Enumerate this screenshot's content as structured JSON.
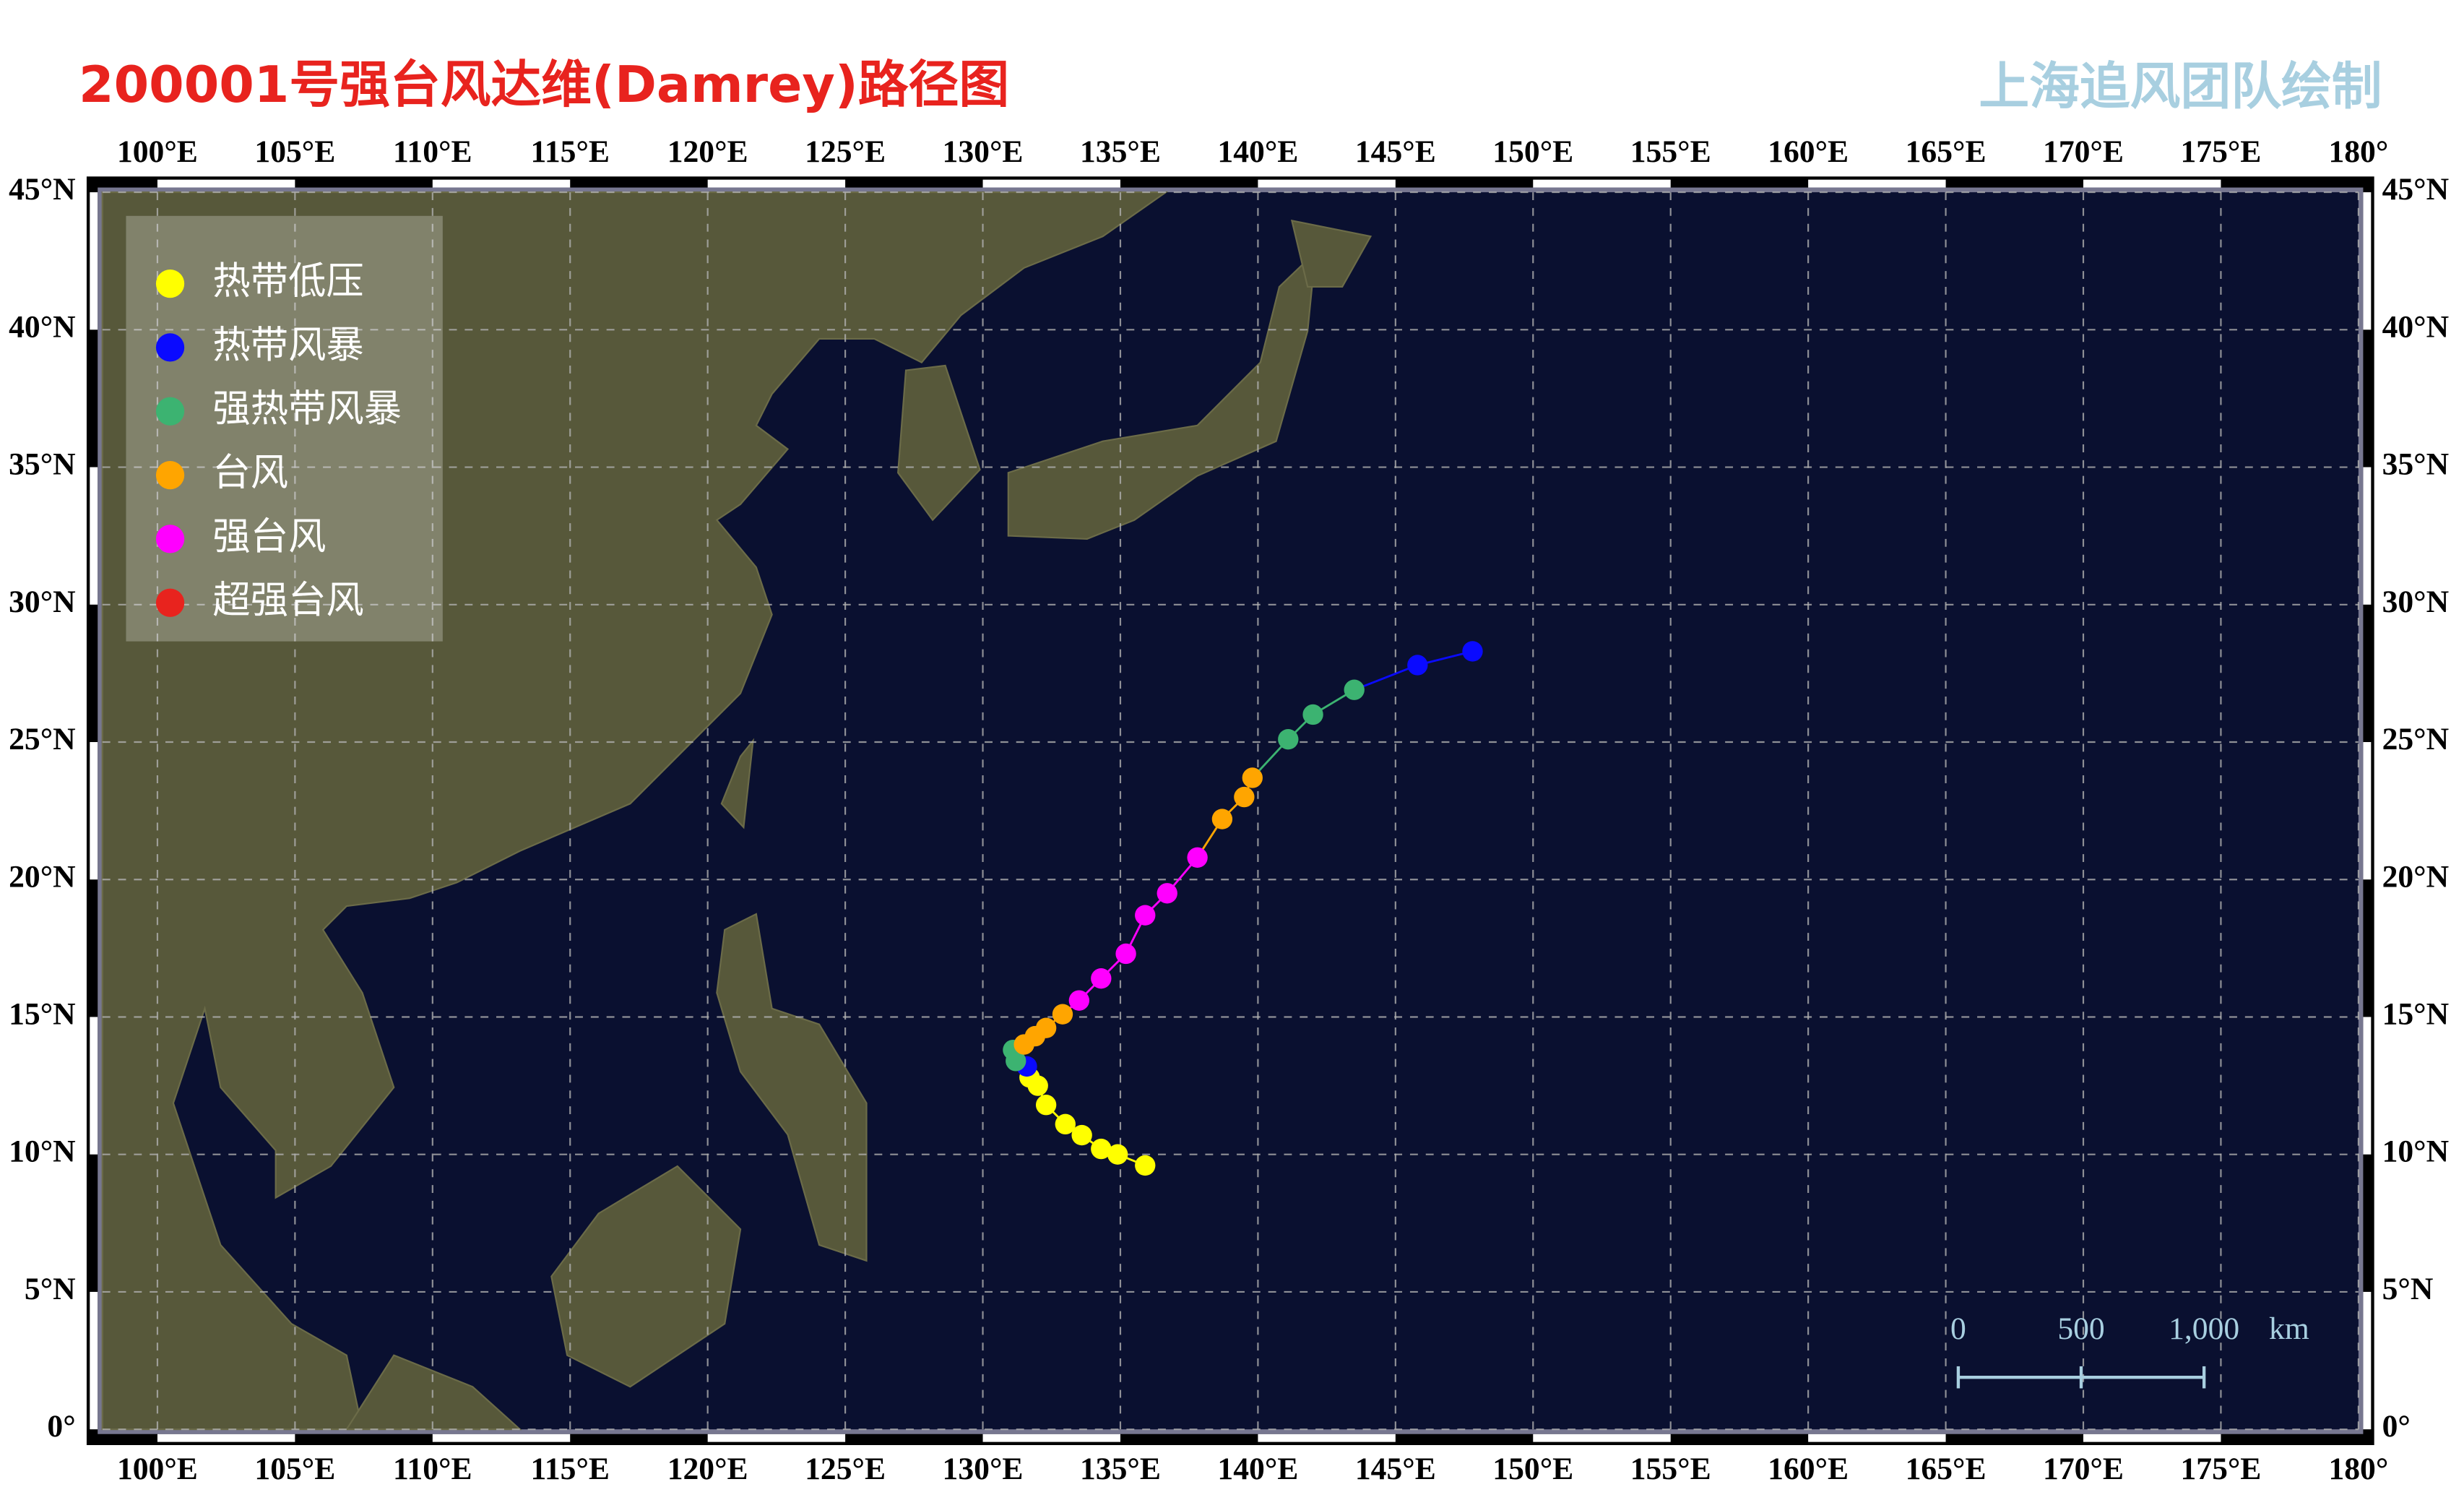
{
  "chart_data": {
    "type": "track",
    "title": "200001号强台风达维(Damrey)路径图",
    "credit": "上海追风团队绘制",
    "xlim": [
      98,
      180
    ],
    "ylim": [
      0,
      45
    ],
    "xticks": [
      {
        "value": 100,
        "label": "100°E"
      },
      {
        "value": 105,
        "label": "105°E"
      },
      {
        "value": 110,
        "label": "110°E"
      },
      {
        "value": 115,
        "label": "115°E"
      },
      {
        "value": 120,
        "label": "120°E"
      },
      {
        "value": 125,
        "label": "125°E"
      },
      {
        "value": 130,
        "label": "130°E"
      },
      {
        "value": 135,
        "label": "135°E"
      },
      {
        "value": 140,
        "label": "140°E"
      },
      {
        "value": 145,
        "label": "145°E"
      },
      {
        "value": 150,
        "label": "150°E"
      },
      {
        "value": 155,
        "label": "155°E"
      },
      {
        "value": 160,
        "label": "160°E"
      },
      {
        "value": 165,
        "label": "165°E"
      },
      {
        "value": 170,
        "label": "170°E"
      },
      {
        "value": 175,
        "label": "175°E"
      },
      {
        "value": 180,
        "label": "180°"
      }
    ],
    "yticks": [
      {
        "value": 0,
        "label": "0°"
      },
      {
        "value": 5,
        "label": "5°N"
      },
      {
        "value": 10,
        "label": "10°N"
      },
      {
        "value": 15,
        "label": "15°N"
      },
      {
        "value": 20,
        "label": "20°N"
      },
      {
        "value": 25,
        "label": "25°N"
      },
      {
        "value": 30,
        "label": "30°N"
      },
      {
        "value": 35,
        "label": "35°N"
      },
      {
        "value": 40,
        "label": "40°N"
      },
      {
        "value": 45,
        "label": "45°N"
      }
    ],
    "grid": true,
    "legend": [
      {
        "name": "热带低压",
        "color": "#ffff00"
      },
      {
        "name": "热带风暴",
        "color": "#0a0aff"
      },
      {
        "name": "强热带风暴",
        "color": "#3cb371"
      },
      {
        "name": "台风",
        "color": "#ffa500"
      },
      {
        "name": "强台风",
        "color": "#ff00ff"
      },
      {
        "name": "超强台风",
        "color": "#e8231e"
      }
    ],
    "track": {
      "lon": [
        135.9,
        134.9,
        134.3,
        133.6,
        133.0,
        132.3,
        132.0,
        131.7,
        131.6,
        131.2,
        131.1,
        131.5,
        131.9,
        132.3,
        132.9,
        133.5,
        134.3,
        135.2,
        135.9,
        136.7,
        137.8,
        138.7,
        139.5,
        139.8,
        141.1,
        142.0,
        143.5,
        145.8,
        147.8
      ],
      "lat": [
        9.6,
        10.0,
        10.2,
        10.7,
        11.1,
        11.8,
        12.5,
        12.8,
        13.2,
        13.4,
        13.8,
        14.0,
        14.3,
        14.6,
        15.1,
        15.6,
        16.4,
        17.3,
        18.7,
        19.5,
        20.8,
        22.2,
        23.0,
        23.7,
        25.1,
        26.0,
        26.9,
        27.8,
        28.3
      ],
      "level": [
        0,
        0,
        0,
        0,
        0,
        0,
        0,
        0,
        1,
        2,
        2,
        3,
        3,
        3,
        3,
        4,
        4,
        4,
        4,
        4,
        4,
        3,
        3,
        3,
        2,
        2,
        2,
        1,
        1
      ]
    },
    "scale_bar": {
      "ticks": [
        {
          "value": 0,
          "label": "0"
        },
        {
          "value": 500,
          "label": "500"
        },
        {
          "value": 1000,
          "label": "1,000"
        }
      ],
      "unit": "km"
    }
  }
}
